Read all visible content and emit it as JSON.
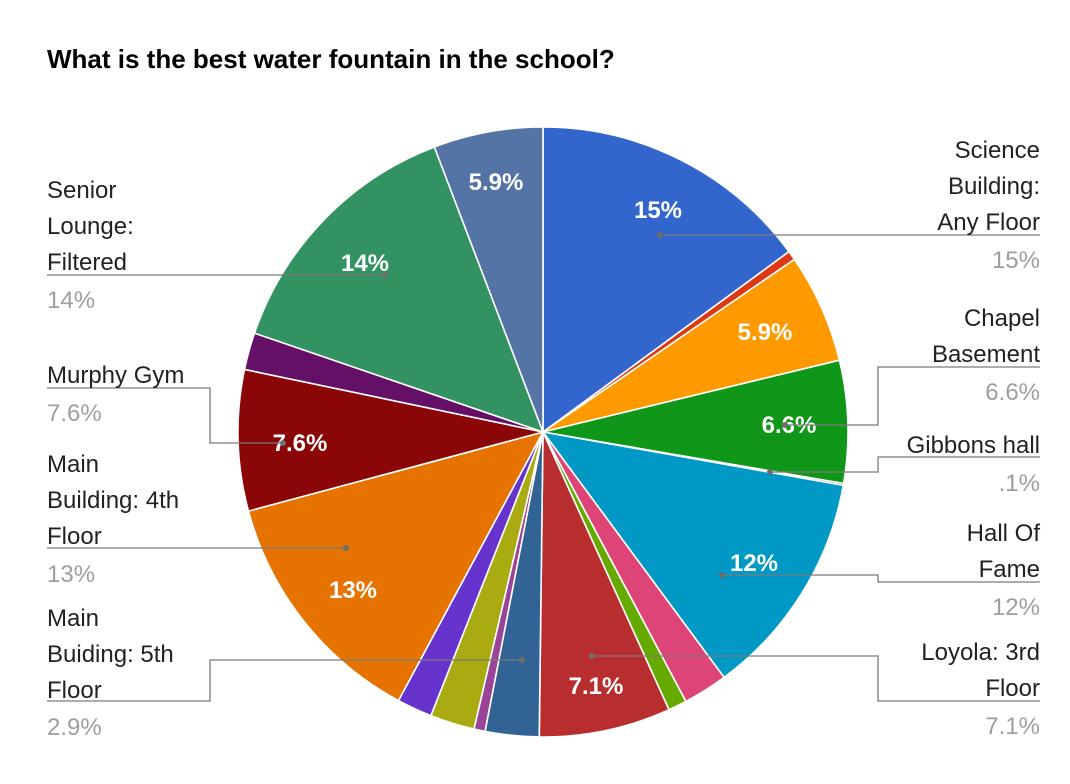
{
  "chart_data": {
    "type": "pie",
    "title": "What is the best water fountain in the school?",
    "start_angle_deg": 0,
    "slices": [
      {
        "name": "Science Building: Any Floor",
        "value": 15.2,
        "pct_label": "15%",
        "color": "#3366cc",
        "inner_label": "15%",
        "outer_label": "Science Building: Any Floor",
        "outer_pct": "15%"
      },
      {
        "name": "",
        "value": 0.5,
        "color": "#dc3912"
      },
      {
        "name": "",
        "value": 5.9,
        "color": "#ff9900",
        "inner_label": "5.9%"
      },
      {
        "name": "Chapel Basement",
        "value": 6.6,
        "pct_label": "6.6%",
        "color": "#109618",
        "inner_label": "6.6%",
        "outer_label": "Chapel Basement",
        "outer_pct": "6.6%"
      },
      {
        "name": "Gibbons hall",
        "value": 0.1,
        "pct_label": ".1%",
        "color": "#990099",
        "outer_label": "Gibbons hall",
        "outer_pct": ".1%"
      },
      {
        "name": "Hall Of Fame",
        "value": 12.3,
        "pct_label": "12%",
        "color": "#0099c6",
        "inner_label": "12%",
        "outer_label": "Hall Of Fame",
        "outer_pct": "12%"
      },
      {
        "name": "",
        "value": 2.4,
        "color": "#dd4477"
      },
      {
        "name": "",
        "value": 1.0,
        "color": "#66aa00"
      },
      {
        "name": "Loyola: 3rd Floor",
        "value": 7.1,
        "pct_label": "7.1%",
        "color": "#b82e2e",
        "inner_label": "7.1%",
        "outer_label": "Loyola: 3rd Floor",
        "outer_pct": "7.1%"
      },
      {
        "name": "Main Buiding: 5th Floor",
        "value": 2.9,
        "pct_label": "2.9%",
        "color": "#316395",
        "outer_label": "Main Buiding: 5th Floor",
        "outer_pct": "2.9%"
      },
      {
        "name": "",
        "value": 0.6,
        "color": "#994499"
      },
      {
        "name": "",
        "value": 2.4,
        "color": "#aaaa11"
      },
      {
        "name": "",
        "value": 1.9,
        "color": "#6633cc"
      },
      {
        "name": "Main Building: 4th Floor",
        "value": 13.2,
        "pct_label": "13%",
        "color": "#e67300",
        "inner_label": "13%",
        "outer_label": "Main Building: 4th Floor",
        "outer_pct": "13%"
      },
      {
        "name": "Murphy Gym",
        "value": 7.6,
        "pct_label": "7.6%",
        "color": "#8b0707",
        "inner_label": "7.6%",
        "outer_label": "Murphy Gym",
        "outer_pct": "7.6%"
      },
      {
        "name": "",
        "value": 2.0,
        "color": "#651067"
      },
      {
        "name": "Senior Lounge: Filtered",
        "value": 14.2,
        "pct_label": "14%",
        "color": "#329262",
        "inner_label": "14%",
        "outer_label": "Senior Lounge: Filtered",
        "outer_pct": "14%"
      },
      {
        "name": "",
        "value": 5.9,
        "color": "#5574a6",
        "inner_label": "5.9%"
      }
    ]
  }
}
